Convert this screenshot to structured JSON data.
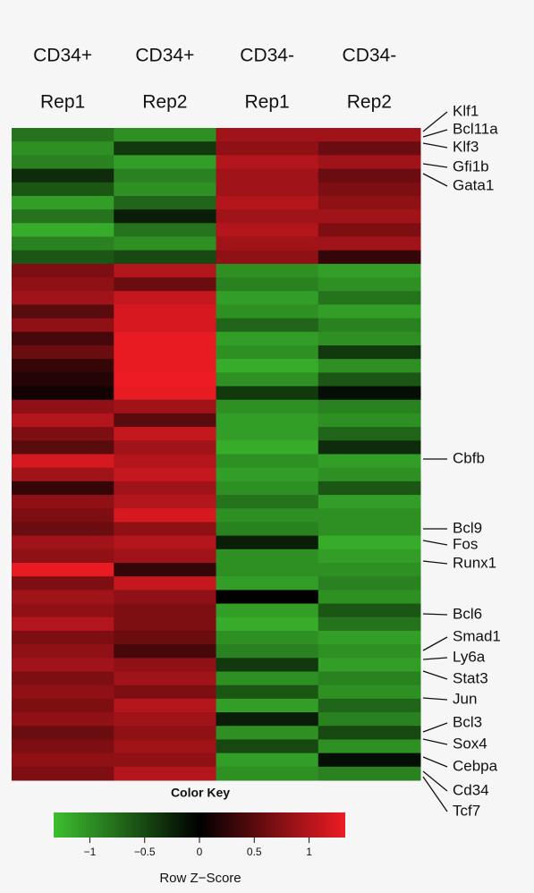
{
  "chart_data": {
    "type": "heatmap",
    "column_labels": [
      [
        "CD34+",
        "Rep1"
      ],
      [
        "CD34+",
        "Rep2"
      ],
      [
        "CD34-",
        "Rep1"
      ],
      [
        "CD34-",
        "Rep2"
      ]
    ],
    "gene_labels": [
      "Klf1",
      "Bcl11a",
      "Klf3",
      "Gfi1b",
      "Gata1",
      "Cbfb",
      "Bcl9",
      "Fos",
      "Runx1",
      "Bcl6",
      "Smad1",
      "Ly6a",
      "Stat3",
      "Jun",
      "Bcl3",
      "Sox4",
      "Cebpa",
      "Cd34",
      "Tcf7"
    ],
    "values": [
      [
        -0.8,
        -1.0,
        0.9,
        0.9
      ],
      [
        -1.0,
        -0.4,
        0.8,
        0.6
      ],
      [
        -0.9,
        -1.1,
        1.0,
        0.9
      ],
      [
        -0.3,
        -0.9,
        0.9,
        0.6
      ],
      [
        -0.6,
        -1.0,
        0.9,
        0.7
      ],
      [
        -1.1,
        -0.7,
        1.0,
        0.8
      ],
      [
        -0.8,
        -0.2,
        0.9,
        0.9
      ],
      [
        -1.2,
        -0.8,
        1.0,
        0.7
      ],
      [
        -0.9,
        -1.0,
        0.9,
        0.9
      ],
      [
        -0.6,
        -0.5,
        0.8,
        0.3
      ],
      [
        0.7,
        1.0,
        -1.0,
        -1.1
      ],
      [
        0.8,
        0.6,
        -0.9,
        -1.0
      ],
      [
        0.9,
        1.1,
        -1.1,
        -0.8
      ],
      [
        0.5,
        1.2,
        -1.0,
        -1.1
      ],
      [
        0.8,
        1.2,
        -0.7,
        -0.9
      ],
      [
        0.4,
        1.3,
        -1.1,
        -1.0
      ],
      [
        0.6,
        1.3,
        -1.0,
        -0.4
      ],
      [
        0.3,
        1.3,
        -1.2,
        -1.0
      ],
      [
        0.2,
        1.4,
        -1.0,
        -0.6
      ],
      [
        0.1,
        1.3,
        -0.4,
        -0.1
      ],
      [
        0.8,
        0.9,
        -1.0,
        -0.9
      ],
      [
        1.0,
        0.5,
        -1.1,
        -1.0
      ],
      [
        0.7,
        1.1,
        -1.1,
        -0.7
      ],
      [
        0.5,
        0.9,
        -1.2,
        -0.3
      ],
      [
        1.2,
        1.0,
        -1.0,
        -1.1
      ],
      [
        0.9,
        1.1,
        -1.1,
        -1.0
      ],
      [
        0.3,
        0.9,
        -1.0,
        -0.6
      ],
      [
        0.8,
        1.0,
        -0.8,
        -1.1
      ],
      [
        0.7,
        1.2,
        -1.0,
        -1.0
      ],
      [
        0.6,
        0.8,
        -0.9,
        -1.0
      ],
      [
        0.9,
        1.0,
        -0.2,
        -1.2
      ],
      [
        0.8,
        0.9,
        -1.0,
        -1.1
      ],
      [
        1.3,
        0.3,
        -1.0,
        -1.0
      ],
      [
        0.7,
        1.1,
        -1.1,
        -0.9
      ],
      [
        0.9,
        0.8,
        0.0,
        -1.0
      ],
      [
        0.8,
        0.7,
        -1.1,
        -0.6
      ],
      [
        1.0,
        0.7,
        -1.2,
        -0.8
      ],
      [
        0.7,
        0.6,
        -1.0,
        -1.1
      ],
      [
        0.8,
        0.4,
        -0.9,
        -1.0
      ],
      [
        0.9,
        0.8,
        -0.4,
        -1.1
      ],
      [
        0.7,
        0.9,
        -1.0,
        -0.9
      ],
      [
        0.8,
        0.7,
        -0.6,
        -1.0
      ],
      [
        0.7,
        1.0,
        -1.1,
        -0.7
      ],
      [
        0.8,
        0.9,
        -0.2,
        -0.9
      ],
      [
        0.6,
        0.8,
        -1.0,
        -0.5
      ],
      [
        0.7,
        0.9,
        -0.5,
        -1.0
      ],
      [
        0.8,
        0.8,
        -1.1,
        -0.1
      ],
      [
        0.7,
        1.0,
        -1.0,
        -0.9
      ]
    ],
    "color_low": "#3dbf2f",
    "color_mid": "#000000",
    "color_high": "#ed1c24",
    "legend_title": "Color Key",
    "xlabel": "Row Z−Score",
    "xlim": [
      -1.33,
      1.33
    ],
    "xticks": [
      {
        "value": -1,
        "label": "−1"
      },
      {
        "value": -0.5,
        "label": "−0.5"
      },
      0,
      0.5,
      1
    ]
  }
}
